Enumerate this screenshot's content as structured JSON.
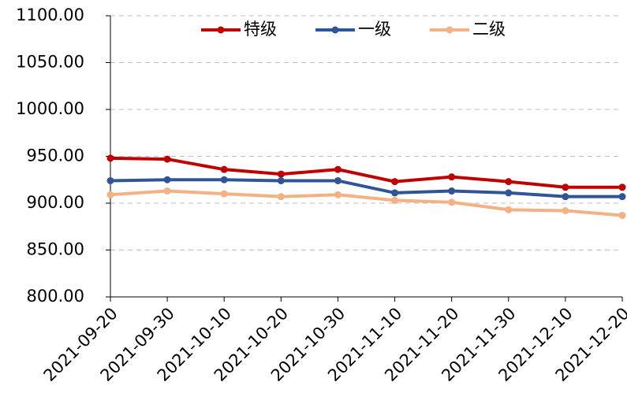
{
  "chart_data": {
    "type": "line",
    "categories": [
      "2021-09-20",
      "2021-09-30",
      "2021-10-10",
      "2021-10-20",
      "2021-10-30",
      "2021-11-10",
      "2021-11-20",
      "2021-11-30",
      "2021-12-10",
      "2021-12-20"
    ],
    "series": [
      {
        "name": "特级",
        "color": "#c00000",
        "values": [
          948,
          947,
          936,
          931,
          936,
          923,
          928,
          923,
          917,
          917
        ]
      },
      {
        "name": "一级",
        "color": "#2f5597",
        "values": [
          924,
          925,
          925,
          924,
          924,
          911,
          913,
          911,
          907,
          907
        ]
      },
      {
        "name": "二级",
        "color": "#f4b183",
        "values": [
          909,
          913,
          910,
          907,
          909,
          903,
          901,
          893,
          892,
          887
        ]
      }
    ],
    "ylim": [
      800,
      1100
    ],
    "yticks": [
      {
        "value": 800,
        "label": "800.00"
      },
      {
        "value": 850,
        "label": "850.00"
      },
      {
        "value": 900,
        "label": "900.00"
      },
      {
        "value": 950,
        "label": "950.00"
      },
      {
        "value": 1000,
        "label": "1000.00"
      },
      {
        "value": 1050,
        "label": "1050.00"
      },
      {
        "value": 1100,
        "label": "1100.00"
      }
    ],
    "grid": true,
    "legend": "top"
  }
}
